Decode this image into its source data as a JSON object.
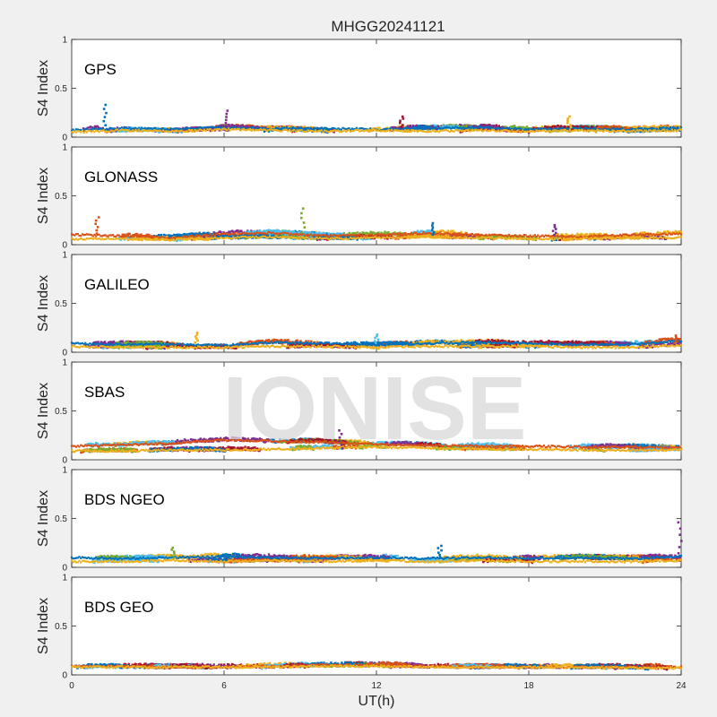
{
  "chart_data": {
    "type": "scatter",
    "title": "MHGG20241121",
    "xlabel": "UT(h)",
    "ylabel": "S4 Index",
    "xlim": [
      0,
      24
    ],
    "ylim": [
      0,
      1
    ],
    "x_ticks": [
      "0",
      "6",
      "12",
      "18",
      "24"
    ],
    "y_ticks": [
      "0",
      "0.5",
      "1"
    ],
    "watermark": "IONISE",
    "grid": false,
    "colors": [
      "#0072BD",
      "#D95319",
      "#EDB120",
      "#7E2F8E",
      "#77AC30",
      "#4DBEEE",
      "#A2142F"
    ],
    "panels": [
      {
        "label": "GPS",
        "series": [
          {
            "x": [
              0,
              2,
              4,
              6,
              8,
              10,
              12,
              14,
              16,
              18,
              20,
              22,
              24
            ],
            "y": [
              0.07,
              0.09,
              0.08,
              0.1,
              0.08,
              0.09,
              0.08,
              0.09,
              0.1,
              0.08,
              0.09,
              0.08,
              0.09
            ]
          },
          {
            "x": [
              0,
              2,
              4,
              6,
              8,
              10,
              12,
              14,
              16,
              18,
              20,
              22,
              24
            ],
            "y": [
              0.05,
              0.07,
              0.06,
              0.08,
              0.07,
              0.06,
              0.07,
              0.06,
              0.07,
              0.06,
              0.07,
              0.06,
              0.07
            ]
          }
        ],
        "spikes": [
          {
            "x": 1.3,
            "y": 0.33
          },
          {
            "x": 6.1,
            "y": 0.27
          },
          {
            "x": 13.0,
            "y": 0.21
          },
          {
            "x": 19.6,
            "y": 0.21
          }
        ]
      },
      {
        "label": "GLONASS",
        "series": [
          {
            "x": [
              0,
              2,
              4,
              6,
              8,
              10,
              12,
              14,
              16,
              18,
              20,
              22,
              24
            ],
            "y": [
              0.1,
              0.09,
              0.07,
              0.11,
              0.12,
              0.09,
              0.1,
              0.12,
              0.1,
              0.09,
              0.08,
              0.1,
              0.11
            ]
          },
          {
            "x": [
              0,
              2,
              4,
              6,
              8,
              10,
              12,
              14,
              16,
              18,
              20,
              22,
              24
            ],
            "y": [
              0.06,
              0.06,
              0.05,
              0.07,
              0.08,
              0.06,
              0.07,
              0.08,
              0.07,
              0.06,
              0.06,
              0.07,
              0.07
            ]
          }
        ],
        "spikes": [
          {
            "x": 1.0,
            "y": 0.28
          },
          {
            "x": 9.1,
            "y": 0.37
          },
          {
            "x": 14.2,
            "y": 0.22
          },
          {
            "x": 19.0,
            "y": 0.2
          }
        ]
      },
      {
        "label": "GALILEO",
        "series": [
          {
            "x": [
              0,
              2,
              4,
              6,
              8,
              10,
              12,
              14,
              16,
              18,
              20,
              22,
              24
            ],
            "y": [
              0.09,
              0.08,
              0.08,
              0.07,
              0.1,
              0.09,
              0.07,
              0.09,
              0.1,
              0.09,
              0.08,
              0.08,
              0.12
            ]
          },
          {
            "x": [
              0,
              2,
              4,
              6,
              8,
              10,
              12,
              14,
              16,
              18,
              20,
              22,
              24
            ],
            "y": [
              0.06,
              0.05,
              0.05,
              0.05,
              0.06,
              0.06,
              0.05,
              0.06,
              0.06,
              0.06,
              0.05,
              0.05,
              0.07
            ]
          }
        ],
        "spikes": [
          {
            "x": 4.9,
            "y": 0.2
          },
          {
            "x": 12.0,
            "y": 0.18
          },
          {
            "x": 23.8,
            "y": 0.17
          }
        ]
      },
      {
        "label": "SBAS",
        "series": [
          {
            "x": [
              0,
              2,
              4,
              6,
              8,
              10,
              12,
              14,
              16,
              18,
              20,
              22,
              24
            ],
            "y": [
              0.14,
              0.15,
              0.17,
              0.2,
              0.19,
              0.18,
              0.16,
              0.15,
              0.14,
              0.14,
              0.13,
              0.13,
              0.12
            ]
          },
          {
            "x": [
              0,
              2,
              4,
              6,
              8,
              10,
              12,
              14,
              16,
              18,
              20,
              22,
              24
            ],
            "y": [
              0.09,
              0.09,
              0.1,
              0.1,
              0.11,
              0.12,
              0.13,
              0.12,
              0.11,
              0.11,
              0.1,
              0.1,
              0.1
            ]
          }
        ],
        "spikes": [
          {
            "x": 10.6,
            "y": 0.3
          }
        ]
      },
      {
        "label": "BDS NGEO",
        "series": [
          {
            "x": [
              0,
              2,
              4,
              6,
              8,
              10,
              12,
              14,
              16,
              18,
              20,
              22,
              24
            ],
            "y": [
              0.1,
              0.09,
              0.1,
              0.11,
              0.1,
              0.09,
              0.1,
              0.09,
              0.1,
              0.09,
              0.1,
              0.09,
              0.11
            ]
          },
          {
            "x": [
              0,
              2,
              4,
              6,
              8,
              10,
              12,
              14,
              16,
              18,
              20,
              22,
              24
            ],
            "y": [
              0.06,
              0.06,
              0.07,
              0.06,
              0.07,
              0.06,
              0.07,
              0.06,
              0.07,
              0.06,
              0.06,
              0.06,
              0.07
            ]
          }
        ],
        "spikes": [
          {
            "x": 4.0,
            "y": 0.2
          },
          {
            "x": 14.5,
            "y": 0.22
          },
          {
            "x": 23.95,
            "y": 0.46
          }
        ]
      },
      {
        "label": "BDS GEO",
        "series": [
          {
            "x": [
              0,
              2,
              4,
              6,
              8,
              10,
              12,
              14,
              16,
              18,
              20,
              22,
              24
            ],
            "y": [
              0.09,
              0.09,
              0.08,
              0.08,
              0.09,
              0.1,
              0.1,
              0.09,
              0.08,
              0.08,
              0.08,
              0.08,
              0.08
            ]
          },
          {
            "x": [
              0,
              2,
              4,
              6,
              8,
              10,
              12,
              14,
              16,
              18,
              20,
              22,
              24
            ],
            "y": [
              0.08,
              0.08,
              0.08,
              0.08,
              0.08,
              0.09,
              0.09,
              0.08,
              0.08,
              0.08,
              0.08,
              0.07,
              0.07
            ]
          }
        ],
        "spikes": []
      }
    ]
  }
}
